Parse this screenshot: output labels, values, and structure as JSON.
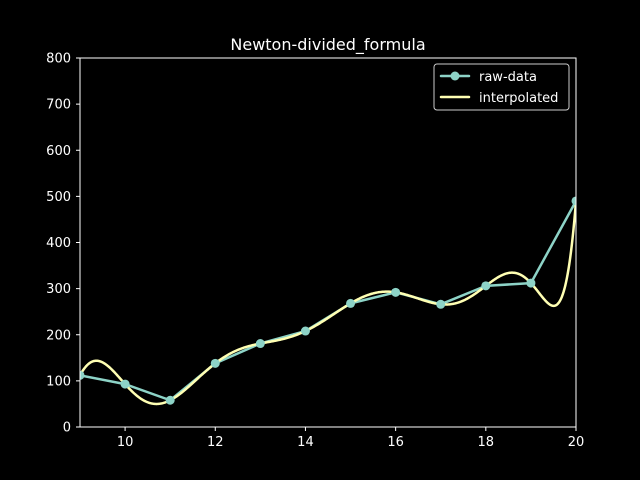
{
  "chart_data": {
    "type": "line",
    "title": "Newton-divided_formula",
    "xlabel": "",
    "ylabel": "",
    "xlim": [
      9,
      20
    ],
    "ylim": [
      0,
      800
    ],
    "x_ticks": [
      10,
      12,
      14,
      16,
      18,
      20
    ],
    "y_ticks": [
      0,
      100,
      200,
      300,
      400,
      500,
      600,
      700,
      800
    ],
    "grid": false,
    "legend_position": "top-right",
    "series": [
      {
        "name": "raw-data",
        "color": "#8dd3c7",
        "marker": "circle",
        "x": [
          9,
          10,
          11,
          12,
          13,
          14,
          15,
          16,
          17,
          18,
          19,
          20
        ],
        "y": [
          112,
          93,
          58,
          138,
          181,
          208,
          268,
          292,
          266,
          306,
          312,
          490
        ]
      },
      {
        "name": "interpolated",
        "color": "#ffffb3",
        "marker": "none",
        "interpolation": "newton-divided-difference",
        "source_series": "raw-data"
      }
    ]
  }
}
